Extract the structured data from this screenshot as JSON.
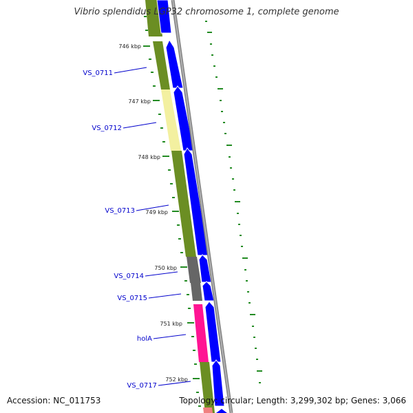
{
  "title": "Vibrio splendidus LGP32 chromosome 1, complete genome",
  "footer": {
    "accession": "Accession: NC_011753",
    "topology": "Topology: circular; Length: 3,299,302 bp; Genes: 3,066"
  },
  "colors": {
    "cds_green": "#6b8e23",
    "cds_yellow": "#f3f0a0",
    "cds_gray": "#666666",
    "cds_pink": "#ff1493",
    "cds_salmon": "#f08080",
    "forward_gene": "#0000ff",
    "backbone": "#888888",
    "tick": "#228b22",
    "gene_label": "#0000cc"
  },
  "scale_labels": [
    "746 kbp",
    "747 kbp",
    "748 kbp",
    "749 kbp",
    "750 kbp",
    "751 kbp",
    "752 kbp"
  ],
  "gene_labels": [
    "VS_0711",
    "VS_0712",
    "VS_0713",
    "VS_0714",
    "VS_0715",
    "holA",
    "VS_0717"
  ]
}
